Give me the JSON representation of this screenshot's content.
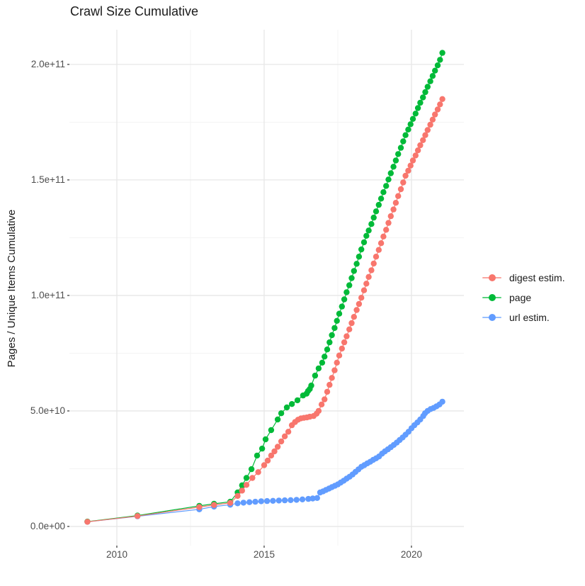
{
  "chart_data": {
    "type": "line",
    "title": "Crawl Size Cumulative",
    "xlabel": "",
    "ylabel": "Pages / Unique Items Cumulative",
    "legend_position": "right",
    "grid": true,
    "xlim": [
      2008.39,
      2021.78
    ],
    "ylim": [
      -8300000000.0,
      215000000000.0
    ],
    "x_ticks": [
      2010,
      2015,
      2020
    ],
    "x_tick_labels": [
      "2010",
      "2015",
      "2020"
    ],
    "x_minor_ticks": [
      2012.5,
      2017.5
    ],
    "y_ticks": [
      0,
      50000000000.0,
      100000000000.0,
      150000000000.0,
      200000000000.0
    ],
    "y_tick_labels": [
      "0.0e+00",
      "5.0e+10",
      "1.0e+11",
      "1.5e+11",
      "2.0e+11"
    ],
    "y_minor_ticks": [
      25000000000.0,
      75000000000.0,
      125000000000.0,
      175000000000.0
    ],
    "series": [
      {
        "name": "digest estim.",
        "color": "#F8766D",
        "points": [
          [
            2009.0,
            2000000000.0
          ],
          [
            2010.7,
            4500000000.0
          ],
          [
            2012.8,
            8400000000.0
          ],
          [
            2013.3,
            9300000000.0
          ],
          [
            2013.85,
            10200000000.0
          ],
          [
            2014.1,
            13200000000.0
          ],
          [
            2014.25,
            15500000000.0
          ],
          [
            2014.4,
            18000000000.0
          ],
          [
            2014.6,
            21000000000.0
          ],
          [
            2014.8,
            23500000000.0
          ],
          [
            2015.0,
            26500000000.0
          ],
          [
            2015.12,
            28500000000.0
          ],
          [
            2015.24,
            30700000000.0
          ],
          [
            2015.35,
            32500000000.0
          ],
          [
            2015.46,
            34500000000.0
          ],
          [
            2015.58,
            36800000000.0
          ],
          [
            2015.7,
            39000000000.0
          ],
          [
            2015.82,
            41000000000.0
          ],
          [
            2015.94,
            43800000000.0
          ],
          [
            2016.05,
            45200000000.0
          ],
          [
            2016.15,
            46200000000.0
          ],
          [
            2016.25,
            46800000000.0
          ],
          [
            2016.35,
            47000000000.0
          ],
          [
            2016.45,
            47200000000.0
          ],
          [
            2016.55,
            47500000000.0
          ],
          [
            2016.68,
            47800000000.0
          ],
          [
            2016.78,
            48800000000.0
          ],
          [
            2016.85,
            50000000000.0
          ],
          [
            2016.95,
            52800000000.0
          ],
          [
            2017.05,
            55000000000.0
          ],
          [
            2017.14,
            58300000000.0
          ],
          [
            2017.22,
            61300000000.0
          ],
          [
            2017.3,
            64300000000.0
          ],
          [
            2017.39,
            67600000000.0
          ],
          [
            2017.47,
            70900000000.0
          ],
          [
            2017.55,
            74000000000.0
          ],
          [
            2017.64,
            77000000000.0
          ],
          [
            2017.72,
            79700000000.0
          ],
          [
            2017.8,
            82300000000.0
          ],
          [
            2017.89,
            85300000000.0
          ],
          [
            2017.97,
            88000000000.0
          ],
          [
            2018.05,
            90700000000.0
          ],
          [
            2018.14,
            93700000000.0
          ],
          [
            2018.22,
            96300000000.0
          ],
          [
            2018.3,
            99000000000.0
          ],
          [
            2018.39,
            102200000000.0
          ],
          [
            2018.47,
            105100000000.0
          ],
          [
            2018.55,
            108000000000.0
          ],
          [
            2018.64,
            110900000000.0
          ],
          [
            2018.72,
            113800000000.0
          ],
          [
            2018.8,
            116800000000.0
          ],
          [
            2018.89,
            119700000000.0
          ],
          [
            2018.97,
            122600000000.0
          ],
          [
            2019.05,
            125500000000.0
          ],
          [
            2019.14,
            128400000000.0
          ],
          [
            2019.22,
            131400000000.0
          ],
          [
            2019.3,
            134300000000.0
          ],
          [
            2019.39,
            137200000000.0
          ],
          [
            2019.47,
            140100000000.0
          ],
          [
            2019.55,
            143000000000.0
          ],
          [
            2019.64,
            146000000000.0
          ],
          [
            2019.72,
            148900000000.0
          ],
          [
            2019.8,
            151800000000.0
          ],
          [
            2019.89,
            154000000000.0
          ],
          [
            2019.97,
            156200000000.0
          ],
          [
            2020.05,
            158400000000.0
          ],
          [
            2020.14,
            160600000000.0
          ],
          [
            2020.22,
            162800000000.0
          ],
          [
            2020.3,
            165000000000.0
          ],
          [
            2020.39,
            167200000000.0
          ],
          [
            2020.47,
            169400000000.0
          ],
          [
            2020.55,
            171600000000.0
          ],
          [
            2020.64,
            173900000000.0
          ],
          [
            2020.72,
            176100000000.0
          ],
          [
            2020.8,
            178300000000.0
          ],
          [
            2020.89,
            180500000000.0
          ],
          [
            2020.97,
            182700000000.0
          ],
          [
            2021.05,
            185000000000.0
          ]
        ]
      },
      {
        "name": "page",
        "color": "#00BA38",
        "points": [
          [
            2009.0,
            2100000000.0
          ],
          [
            2010.7,
            4700000000.0
          ],
          [
            2012.8,
            8900000000.0
          ],
          [
            2013.3,
            9800000000.0
          ],
          [
            2013.85,
            10700000000.0
          ],
          [
            2014.1,
            14700000000.0
          ],
          [
            2014.25,
            17800000000.0
          ],
          [
            2014.4,
            21000000000.0
          ],
          [
            2014.57,
            24800000000.0
          ],
          [
            2014.76,
            30700000000.0
          ],
          [
            2014.93,
            33700000000.0
          ],
          [
            2015.05,
            37700000000.0
          ],
          [
            2015.24,
            41700000000.0
          ],
          [
            2015.46,
            46300000000.0
          ],
          [
            2015.58,
            49000000000.0
          ],
          [
            2015.77,
            51500000000.0
          ],
          [
            2015.94,
            53000000000.0
          ],
          [
            2016.13,
            54600000000.0
          ],
          [
            2016.32,
            56700000000.0
          ],
          [
            2016.44,
            57500000000.0
          ],
          [
            2016.49,
            58600000000.0
          ],
          [
            2016.55,
            59500000000.0
          ],
          [
            2016.6,
            61000000000.0
          ],
          [
            2016.73,
            65300000000.0
          ],
          [
            2016.85,
            68400000000.0
          ],
          [
            2016.97,
            70900000000.0
          ],
          [
            2017.05,
            73500000000.0
          ],
          [
            2017.14,
            76600000000.0
          ],
          [
            2017.22,
            79700000000.0
          ],
          [
            2017.3,
            82800000000.0
          ],
          [
            2017.39,
            85900000000.0
          ],
          [
            2017.47,
            89000000000.0
          ],
          [
            2017.55,
            92100000000.0
          ],
          [
            2017.64,
            95200000000.0
          ],
          [
            2017.72,
            98300000000.0
          ],
          [
            2017.8,
            101400000000.0
          ],
          [
            2017.89,
            104400000000.0
          ],
          [
            2017.97,
            107500000000.0
          ],
          [
            2018.05,
            110600000000.0
          ],
          [
            2018.14,
            113700000000.0
          ],
          [
            2018.22,
            116800000000.0
          ],
          [
            2018.3,
            119900000000.0
          ],
          [
            2018.39,
            123000000000.0
          ],
          [
            2018.47,
            125800000000.0
          ],
          [
            2018.55,
            128100000000.0
          ],
          [
            2018.64,
            130900000000.0
          ],
          [
            2018.72,
            133700000000.0
          ],
          [
            2018.8,
            136400000000.0
          ],
          [
            2018.89,
            139200000000.0
          ],
          [
            2018.97,
            141900000000.0
          ],
          [
            2019.05,
            144700000000.0
          ],
          [
            2019.14,
            147400000000.0
          ],
          [
            2019.22,
            150200000000.0
          ],
          [
            2019.3,
            152900000000.0
          ],
          [
            2019.39,
            155700000000.0
          ],
          [
            2019.47,
            158400000000.0
          ],
          [
            2019.55,
            161200000000.0
          ],
          [
            2019.64,
            163900000000.0
          ],
          [
            2019.72,
            166700000000.0
          ],
          [
            2019.8,
            169400000000.0
          ],
          [
            2019.89,
            171800000000.0
          ],
          [
            2019.97,
            174100000000.0
          ],
          [
            2020.05,
            176400000000.0
          ],
          [
            2020.14,
            178700000000.0
          ],
          [
            2020.22,
            181100000000.0
          ],
          [
            2020.3,
            183400000000.0
          ],
          [
            2020.39,
            185700000000.0
          ],
          [
            2020.47,
            188000000000.0
          ],
          [
            2020.55,
            190300000000.0
          ],
          [
            2020.64,
            192700000000.0
          ],
          [
            2020.72,
            195000000000.0
          ],
          [
            2020.8,
            197300000000.0
          ],
          [
            2020.89,
            199600000000.0
          ],
          [
            2020.97,
            202000000000.0
          ],
          [
            2021.05,
            205000000000.0
          ]
        ]
      },
      {
        "name": "url estim.",
        "color": "#619CFF",
        "points": [
          [
            2009.0,
            2000000000.0
          ],
          [
            2010.7,
            4400000000.0
          ],
          [
            2012.8,
            7400000000.0
          ],
          [
            2013.3,
            8600000000.0
          ],
          [
            2013.85,
            9400000000.0
          ],
          [
            2014.1,
            10000000000.0
          ],
          [
            2014.3,
            10300000000.0
          ],
          [
            2014.5,
            10500000000.0
          ],
          [
            2014.7,
            10700000000.0
          ],
          [
            2014.9,
            10900000000.0
          ],
          [
            2015.1,
            11000000000.0
          ],
          [
            2015.3,
            11100000000.0
          ],
          [
            2015.5,
            11200000000.0
          ],
          [
            2015.7,
            11300000000.0
          ],
          [
            2015.9,
            11400000000.0
          ],
          [
            2016.1,
            11500000000.0
          ],
          [
            2016.3,
            11700000000.0
          ],
          [
            2016.5,
            11900000000.0
          ],
          [
            2016.65,
            12100000000.0
          ],
          [
            2016.8,
            12300000000.0
          ],
          [
            2016.9,
            14700000000.0
          ],
          [
            2017.0,
            15200000000.0
          ],
          [
            2017.1,
            15800000000.0
          ],
          [
            2017.2,
            16400000000.0
          ],
          [
            2017.3,
            17000000000.0
          ],
          [
            2017.4,
            17600000000.0
          ],
          [
            2017.5,
            18200000000.0
          ],
          [
            2017.6,
            19000000000.0
          ],
          [
            2017.7,
            19800000000.0
          ],
          [
            2017.8,
            20700000000.0
          ],
          [
            2017.9,
            21500000000.0
          ],
          [
            2018.0,
            22500000000.0
          ],
          [
            2018.1,
            23600000000.0
          ],
          [
            2018.2,
            24700000000.0
          ],
          [
            2018.3,
            25800000000.0
          ],
          [
            2018.4,
            26500000000.0
          ],
          [
            2018.5,
            27300000000.0
          ],
          [
            2018.6,
            28000000000.0
          ],
          [
            2018.7,
            28800000000.0
          ],
          [
            2018.8,
            29500000000.0
          ],
          [
            2018.9,
            30300000000.0
          ],
          [
            2019.0,
            31500000000.0
          ],
          [
            2019.1,
            32500000000.0
          ],
          [
            2019.2,
            33400000000.0
          ],
          [
            2019.3,
            34300000000.0
          ],
          [
            2019.4,
            35300000000.0
          ],
          [
            2019.5,
            36300000000.0
          ],
          [
            2019.6,
            37400000000.0
          ],
          [
            2019.7,
            38500000000.0
          ],
          [
            2019.8,
            39700000000.0
          ],
          [
            2019.9,
            41000000000.0
          ],
          [
            2020.0,
            42500000000.0
          ],
          [
            2020.1,
            43800000000.0
          ],
          [
            2020.2,
            45000000000.0
          ],
          [
            2020.3,
            46300000000.0
          ],
          [
            2020.4,
            47800000000.0
          ],
          [
            2020.46,
            49000000000.0
          ],
          [
            2020.55,
            50000000000.0
          ],
          [
            2020.65,
            50800000000.0
          ],
          [
            2020.75,
            51300000000.0
          ],
          [
            2020.85,
            52000000000.0
          ],
          [
            2020.95,
            52800000000.0
          ],
          [
            2021.05,
            54000000000.0
          ]
        ]
      }
    ]
  }
}
